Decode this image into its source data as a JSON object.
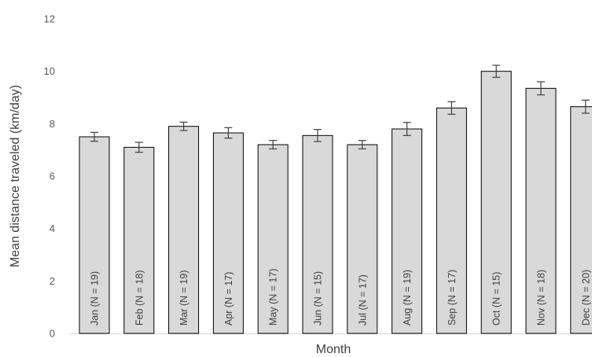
{
  "chart_data": {
    "type": "bar",
    "title": "",
    "xlabel": "Month",
    "ylabel": "Mean distance traveled (km/day)",
    "ylim": [
      0,
      12
    ],
    "yticks": [
      0,
      2,
      4,
      6,
      8,
      10,
      12
    ],
    "grid": false,
    "legend": "none",
    "bar_color": "#d9d9d9",
    "bar_outline": "#000000",
    "error_bar_color": "#404040",
    "categories": [
      "Jan (N = 19)",
      "Feb (N = 18)",
      "Mar (N = 19)",
      "Apr (N = 17)",
      "May (N = 17)",
      "Jun (N = 15)",
      "Jul (N = 17)",
      "Aug (N = 19)",
      "Sep (N = 17)",
      "Oct (N = 15)",
      "Nov (N = 18)",
      "Dec (N = 20)"
    ],
    "values": [
      7.5,
      7.1,
      7.9,
      7.65,
      7.2,
      7.55,
      7.2,
      7.8,
      8.6,
      10.0,
      9.35,
      8.65
    ],
    "errors": [
      0.17,
      0.19,
      0.16,
      0.2,
      0.16,
      0.23,
      0.16,
      0.25,
      0.24,
      0.23,
      0.25,
      0.25
    ]
  }
}
